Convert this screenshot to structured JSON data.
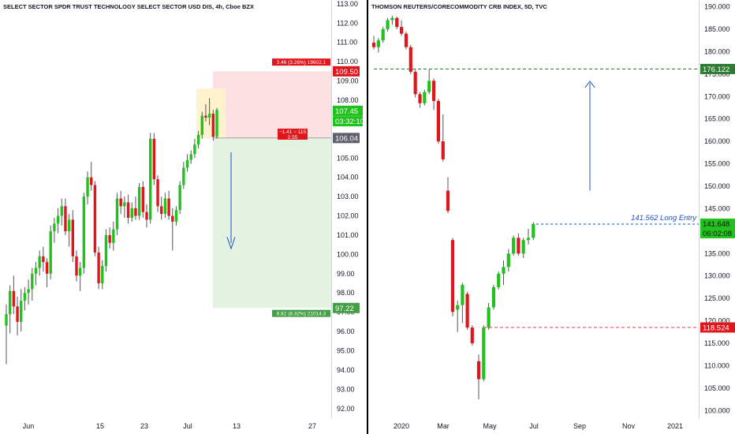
{
  "chart_data": [
    {
      "type": "candlestick",
      "title": "SELECT SECTOR SPDR TRUST TECHNOLOGY SELECT SECTOR USD DIS, 4h, Cboe BZX",
      "x_tick_labels": [
        "Jun",
        "15",
        "23",
        "Jul",
        "13",
        "27"
      ],
      "y_tick_labels": [
        "92.00",
        "93.00",
        "94.00",
        "95.00",
        "96.00",
        "97.00",
        "98.00",
        "99.00",
        "100.00",
        "101.00",
        "102.00",
        "103.00",
        "104.00",
        "105.00",
        "106.00",
        "107.00",
        "108.00",
        "109.00",
        "110.00",
        "111.00",
        "112.00",
        "113.00"
      ],
      "ylim": [
        91.5,
        113.2
      ],
      "grid": false,
      "candles": [
        {
          "o": 96.3,
          "h": 97.4,
          "l": 94.3,
          "c": 96.9
        },
        {
          "o": 96.9,
          "h": 98.4,
          "l": 95.9,
          "c": 98.1
        },
        {
          "o": 98.1,
          "h": 98.9,
          "l": 96.9,
          "c": 97.3
        },
        {
          "o": 97.3,
          "h": 97.8,
          "l": 95.8,
          "c": 96.5
        },
        {
          "o": 96.5,
          "h": 98.2,
          "l": 96.0,
          "c": 97.6
        },
        {
          "o": 97.6,
          "h": 98.3,
          "l": 97.1,
          "c": 98.0
        },
        {
          "o": 98.0,
          "h": 98.7,
          "l": 97.4,
          "c": 98.2
        },
        {
          "o": 98.2,
          "h": 99.3,
          "l": 97.6,
          "c": 99.0
        },
        {
          "o": 99.0,
          "h": 99.6,
          "l": 98.4,
          "c": 99.3
        },
        {
          "o": 99.3,
          "h": 100.2,
          "l": 98.9,
          "c": 99.9
        },
        {
          "o": 99.9,
          "h": 100.4,
          "l": 99.1,
          "c": 99.6
        },
        {
          "o": 99.6,
          "h": 99.8,
          "l": 98.3,
          "c": 99.0
        },
        {
          "o": 99.0,
          "h": 101.5,
          "l": 98.7,
          "c": 101.2
        },
        {
          "o": 101.2,
          "h": 101.9,
          "l": 100.6,
          "c": 101.6
        },
        {
          "o": 101.6,
          "h": 102.4,
          "l": 101.1,
          "c": 102.0
        },
        {
          "o": 102.0,
          "h": 102.9,
          "l": 101.5,
          "c": 102.5
        },
        {
          "o": 102.5,
          "h": 102.9,
          "l": 101.0,
          "c": 101.2
        },
        {
          "o": 101.2,
          "h": 102.1,
          "l": 100.4,
          "c": 101.8
        },
        {
          "o": 101.8,
          "h": 102.3,
          "l": 99.6,
          "c": 99.9
        },
        {
          "o": 99.9,
          "h": 100.2,
          "l": 98.6,
          "c": 98.9
        },
        {
          "o": 98.9,
          "h": 99.6,
          "l": 98.1,
          "c": 99.3
        },
        {
          "o": 99.3,
          "h": 103.2,
          "l": 99.0,
          "c": 103.0
        },
        {
          "o": 103.0,
          "h": 104.3,
          "l": 102.6,
          "c": 104.0
        },
        {
          "o": 104.0,
          "h": 104.8,
          "l": 103.3,
          "c": 103.6
        },
        {
          "o": 103.6,
          "h": 103.8,
          "l": 99.9,
          "c": 100.1
        },
        {
          "o": 100.1,
          "h": 100.4,
          "l": 98.2,
          "c": 98.5
        },
        {
          "o": 98.5,
          "h": 99.7,
          "l": 98.2,
          "c": 99.4
        },
        {
          "o": 99.4,
          "h": 101.3,
          "l": 99.1,
          "c": 101.0
        },
        {
          "o": 101.0,
          "h": 101.4,
          "l": 100.3,
          "c": 100.6
        },
        {
          "o": 100.6,
          "h": 101.7,
          "l": 100.2,
          "c": 101.3
        },
        {
          "o": 101.3,
          "h": 103.2,
          "l": 101.0,
          "c": 102.9
        },
        {
          "o": 102.9,
          "h": 103.3,
          "l": 102.1,
          "c": 102.5
        },
        {
          "o": 102.5,
          "h": 103.0,
          "l": 101.9,
          "c": 102.7
        },
        {
          "o": 102.7,
          "h": 103.1,
          "l": 101.6,
          "c": 101.9
        },
        {
          "o": 101.9,
          "h": 102.7,
          "l": 101.7,
          "c": 102.4
        },
        {
          "o": 102.4,
          "h": 103.0,
          "l": 101.8,
          "c": 102.0
        },
        {
          "o": 102.0,
          "h": 103.7,
          "l": 101.8,
          "c": 103.5
        },
        {
          "o": 103.5,
          "h": 103.8,
          "l": 101.9,
          "c": 102.2
        },
        {
          "o": 102.2,
          "h": 102.6,
          "l": 101.4,
          "c": 101.8
        },
        {
          "o": 101.8,
          "h": 106.3,
          "l": 101.6,
          "c": 106.0
        },
        {
          "o": 106.0,
          "h": 106.3,
          "l": 103.6,
          "c": 103.9
        },
        {
          "o": 103.9,
          "h": 104.1,
          "l": 102.2,
          "c": 102.5
        },
        {
          "o": 102.5,
          "h": 103.0,
          "l": 101.8,
          "c": 102.1
        },
        {
          "o": 102.1,
          "h": 103.2,
          "l": 101.9,
          "c": 102.9
        },
        {
          "o": 102.9,
          "h": 103.3,
          "l": 101.8,
          "c": 102.0
        },
        {
          "o": 102.0,
          "h": 102.4,
          "l": 100.2,
          "c": 101.7
        },
        {
          "o": 101.7,
          "h": 102.5,
          "l": 101.5,
          "c": 102.3
        },
        {
          "o": 102.3,
          "h": 103.8,
          "l": 102.1,
          "c": 103.6
        },
        {
          "o": 103.6,
          "h": 104.8,
          "l": 103.4,
          "c": 104.5
        },
        {
          "o": 104.5,
          "h": 105.2,
          "l": 104.3,
          "c": 104.9
        },
        {
          "o": 104.9,
          "h": 105.4,
          "l": 104.7,
          "c": 105.2
        },
        {
          "o": 105.2,
          "h": 106.0,
          "l": 105.0,
          "c": 105.7
        },
        {
          "o": 105.7,
          "h": 106.4,
          "l": 105.5,
          "c": 106.2
        },
        {
          "o": 106.2,
          "h": 107.4,
          "l": 106.0,
          "c": 107.2
        },
        {
          "o": 107.2,
          "h": 107.8,
          "l": 106.9,
          "c": 107.1
        },
        {
          "o": 107.1,
          "h": 108.1,
          "l": 106.7,
          "c": 107.3
        },
        {
          "o": 107.3,
          "h": 107.5,
          "l": 105.9,
          "c": 106.1
        },
        {
          "o": 106.1,
          "h": 107.6,
          "l": 106.0,
          "c": 107.5
        }
      ],
      "position": {
        "kind": "short",
        "entry_label": "106.04",
        "target_label": "97.22",
        "stop_label": "109.50",
        "stop_info": "3.46 (3.26%) 19602.1",
        "target_info": "8.82 (8.32%) 21014.3",
        "mid_info": [
          "−1.41 ~ 115",
          "2.55"
        ]
      },
      "last_price": "107.45",
      "countdown": "03:32:10"
    },
    {
      "type": "candlestick",
      "title": "THOMSON REUTERS/CORECOMMODITY CRB INDEX, 5D, TVC",
      "x_tick_labels": [
        "2020",
        "Mar",
        "May",
        "Jul",
        "Sep",
        "Nov",
        "2021"
      ],
      "y_tick_labels": [
        "100.000",
        "105.000",
        "110.000",
        "115.000",
        "120.000",
        "125.000",
        "130.000",
        "135.000",
        "140.000",
        "145.000",
        "150.000",
        "155.000",
        "160.000",
        "165.000",
        "170.000",
        "175.000",
        "180.000",
        "185.000",
        "190.000"
      ],
      "ylim": [
        98.3,
        191.5
      ],
      "grid": false,
      "candles": [
        {
          "o": 182.0,
          "h": 183.5,
          "l": 180.5,
          "c": 181.0
        },
        {
          "o": 181.0,
          "h": 183.0,
          "l": 179.8,
          "c": 182.5
        },
        {
          "o": 182.5,
          "h": 185.5,
          "l": 182.0,
          "c": 185.0
        },
        {
          "o": 185.0,
          "h": 187.5,
          "l": 184.5,
          "c": 187.0
        },
        {
          "o": 187.0,
          "h": 188.0,
          "l": 186.0,
          "c": 187.5
        },
        {
          "o": 187.5,
          "h": 187.8,
          "l": 185.0,
          "c": 185.5
        },
        {
          "o": 185.5,
          "h": 187.0,
          "l": 183.5,
          "c": 184.0
        },
        {
          "o": 184.0,
          "h": 184.5,
          "l": 180.5,
          "c": 181.0
        },
        {
          "o": 181.0,
          "h": 181.5,
          "l": 175.0,
          "c": 175.5
        },
        {
          "o": 175.5,
          "h": 176.0,
          "l": 169.8,
          "c": 170.5
        },
        {
          "o": 170.5,
          "h": 171.0,
          "l": 167.5,
          "c": 168.5
        },
        {
          "o": 168.5,
          "h": 171.5,
          "l": 168.0,
          "c": 171.0
        },
        {
          "o": 171.0,
          "h": 176.0,
          "l": 170.5,
          "c": 173.5
        },
        {
          "o": 173.5,
          "h": 174.0,
          "l": 167.0,
          "c": 169.0
        },
        {
          "o": 169.0,
          "h": 169.5,
          "l": 159.5,
          "c": 160.0
        },
        {
          "o": 160.0,
          "h": 166.0,
          "l": 155.5,
          "c": 156.0
        },
        {
          "o": 149.0,
          "h": 152.0,
          "l": 144.0,
          "c": 144.5
        },
        {
          "o": 138.0,
          "h": 138.5,
          "l": 121.0,
          "c": 122.0
        },
        {
          "o": 122.5,
          "h": 124.5,
          "l": 117.5,
          "c": 123.5
        },
        {
          "o": 123.5,
          "h": 128.5,
          "l": 119.5,
          "c": 128.0
        },
        {
          "o": 126.0,
          "h": 126.5,
          "l": 118.0,
          "c": 118.5
        },
        {
          "o": 118.5,
          "h": 119.0,
          "l": 114.5,
          "c": 115.0
        },
        {
          "o": 111.0,
          "h": 112.5,
          "l": 102.5,
          "c": 107.0
        },
        {
          "o": 107.0,
          "h": 119.0,
          "l": 106.5,
          "c": 118.5
        },
        {
          "o": 118.5,
          "h": 124.0,
          "l": 118.0,
          "c": 123.0
        },
        {
          "o": 123.0,
          "h": 128.0,
          "l": 122.5,
          "c": 127.5
        },
        {
          "o": 127.5,
          "h": 131.0,
          "l": 127.0,
          "c": 130.5
        },
        {
          "o": 130.5,
          "h": 133.5,
          "l": 128.0,
          "c": 132.0
        },
        {
          "o": 132.0,
          "h": 136.0,
          "l": 131.0,
          "c": 135.0
        },
        {
          "o": 135.0,
          "h": 139.0,
          "l": 134.5,
          "c": 138.5
        },
        {
          "o": 138.5,
          "h": 139.5,
          "l": 134.5,
          "c": 135.0
        },
        {
          "o": 135.0,
          "h": 138.5,
          "l": 134.0,
          "c": 138.0
        },
        {
          "o": 138.0,
          "h": 140.5,
          "l": 137.0,
          "c": 138.5
        },
        {
          "o": 138.5,
          "h": 142.0,
          "l": 138.0,
          "c": 141.6
        }
      ],
      "horizontal_lines": [
        {
          "value": 176.122,
          "label": "176.122",
          "color": "#2e7d32"
        },
        {
          "value": 118.524,
          "label": "118.524",
          "color": "#f23645"
        }
      ],
      "annotation": "141.562 Long Entry",
      "last_price": "141.648",
      "countdown": "06:02:08"
    }
  ],
  "colors": {
    "up": "#22c21e",
    "down": "#e0161d",
    "axis_text": "#131722",
    "target_zone": "#e3f2e1",
    "stop_zone": "#fbe1e1",
    "entry_zone": "#fff3cd",
    "arrow": "#1e50c8",
    "label_dark": "#5d606b"
  }
}
